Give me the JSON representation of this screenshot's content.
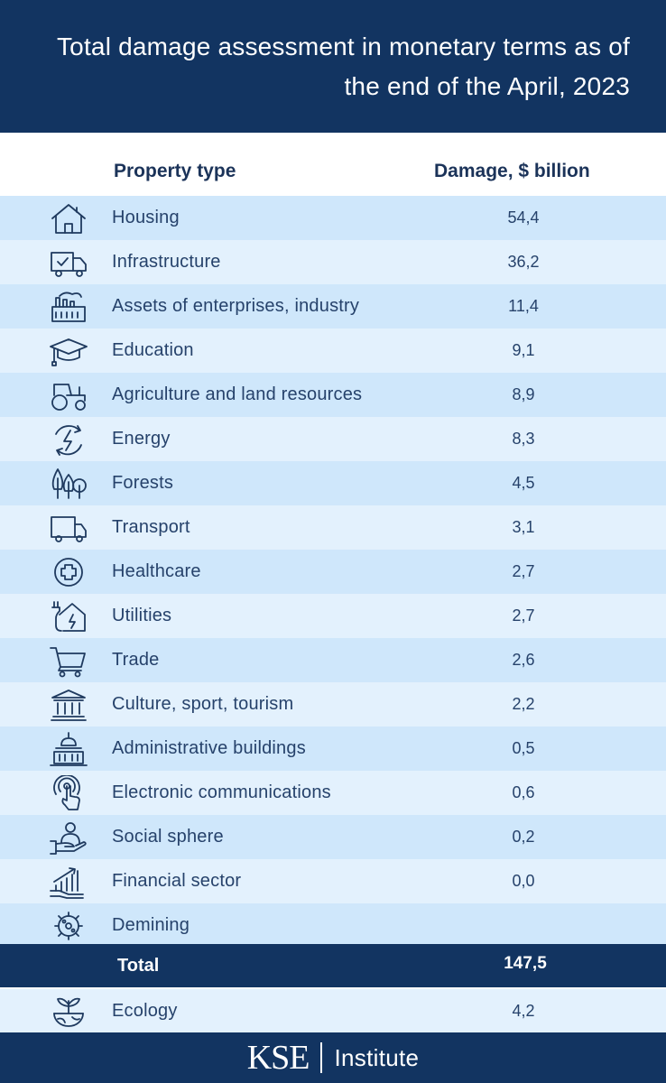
{
  "header": {
    "title": "Total damage assessment in monetary terms as of the end of the April, 2023"
  },
  "table": {
    "col_type": "Property type",
    "col_damage": "Damage, $ billion"
  },
  "chart_data": {
    "type": "table",
    "title": "Total damage assessment in monetary terms as of the end of the April, 2023",
    "columns": [
      "Property type",
      "Damage, $ billion"
    ],
    "rows": [
      {
        "label": "Housing",
        "value": "54,4",
        "icon": "house-icon"
      },
      {
        "label": "Infrastructure",
        "value": "36,2",
        "icon": "delivery-truck-icon"
      },
      {
        "label": "Assets of enterprises, industry",
        "value": "11,4",
        "icon": "factory-icon"
      },
      {
        "label": "Education",
        "value": "9,1",
        "icon": "graduation-cap-icon"
      },
      {
        "label": "Agriculture and land resources",
        "value": "8,9",
        "icon": "tractor-icon"
      },
      {
        "label": "Energy",
        "value": "8,3",
        "icon": "energy-bolt-icon"
      },
      {
        "label": "Forests",
        "value": "4,5",
        "icon": "trees-icon"
      },
      {
        "label": "Transport",
        "value": "3,1",
        "icon": "truck-icon"
      },
      {
        "label": "Healthcare",
        "value": "2,7",
        "icon": "medical-cross-icon"
      },
      {
        "label": "Utilities",
        "value": "2,7",
        "icon": "house-plug-icon"
      },
      {
        "label": "Trade",
        "value": "2,6",
        "icon": "shopping-cart-icon"
      },
      {
        "label": "Culture, sport, tourism",
        "value": "2,2",
        "icon": "museum-icon"
      },
      {
        "label": "Administrative buildings",
        "value": "0,5",
        "icon": "capitol-icon"
      },
      {
        "label": "Electronic communications",
        "value": "0,6",
        "icon": "touch-signal-icon"
      },
      {
        "label": "Social sphere",
        "value": "0,2",
        "icon": "hand-person-icon"
      },
      {
        "label": "Financial sector",
        "value": "0,0",
        "icon": "finance-growth-icon"
      },
      {
        "label": "Demining",
        "value": "",
        "icon": "mine-icon"
      }
    ],
    "total": {
      "label": "Total",
      "value": "147,5"
    },
    "extra": {
      "label": "Ecology",
      "value": "4,2",
      "icon": "plant-globe-icon"
    }
  },
  "footer": {
    "logo_main": "KSE",
    "logo_sub": "Institute"
  },
  "colors": {
    "navy": "#123461",
    "row_dark": "#cfe7fb",
    "row_light": "#e3f1fd",
    "text": "#26426b"
  }
}
